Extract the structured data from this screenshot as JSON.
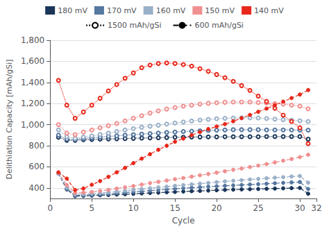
{
  "chart_data": {
    "type": "line",
    "xlabel": "Cycle",
    "ylabel": "Delithiation Capacity [mAh/gSi]",
    "x": [
      1,
      2,
      3,
      4,
      5,
      6,
      7,
      8,
      9,
      10,
      11,
      12,
      13,
      14,
      15,
      16,
      17,
      18,
      19,
      20,
      21,
      22,
      23,
      24,
      25,
      26,
      27,
      28,
      29,
      30,
      31
    ],
    "xlim": [
      0,
      32
    ],
    "xticks": [
      0,
      5,
      10,
      15,
      20,
      25,
      30
    ],
    "ylim": [
      300,
      1800
    ],
    "yticks": [
      400,
      600,
      800,
      1000,
      1200,
      1400,
      1600,
      1800
    ],
    "grid": "y",
    "legend": "top",
    "series": [
      {
        "name": "180 mV",
        "group": "1500 mAh/gSi",
        "color": "#1a3558",
        "marker": "open circle",
        "line_style": "dotted",
        "values": [
          880,
          852,
          852,
          857,
          860,
          862,
          864,
          866,
          868,
          870,
          872,
          874,
          876,
          878,
          880,
          881,
          882,
          883,
          884,
          884,
          885,
          885,
          886,
          886,
          886,
          887,
          887,
          887,
          887,
          887,
          862
        ]
      },
      {
        "name": "180 mV",
        "group": "600 mAh/gSi",
        "color": "#1a3558",
        "marker": "filled circle",
        "line_style": "dashed",
        "values": [
          536,
          386,
          322,
          324,
          327,
          330,
          333,
          337,
          340,
          344,
          348,
          352,
          355,
          359,
          362,
          366,
          369,
          372,
          375,
          378,
          381,
          384,
          386,
          388,
          390,
          392,
          394,
          396,
          398,
          400,
          345
        ]
      },
      {
        "name": "170 mV",
        "group": "1500 mAh/gSi",
        "color": "#5577a0",
        "marker": "open circle",
        "line_style": "dotted",
        "values": [
          900,
          862,
          860,
          868,
          875,
          882,
          888,
          893,
          900,
          905,
          910,
          915,
          920,
          926,
          930,
          935,
          938,
          942,
          945,
          948,
          950,
          952,
          952,
          952,
          952,
          950,
          950,
          950,
          950,
          948,
          948
        ]
      },
      {
        "name": "170 mV",
        "group": "600 mAh/gSi",
        "color": "#5577a0",
        "marker": "filled circle",
        "line_style": "dashed",
        "values": [
          537,
          392,
          328,
          330,
          334,
          338,
          344,
          350,
          356,
          362,
          368,
          374,
          380,
          386,
          392,
          397,
          402,
          407,
          412,
          416,
          420,
          424,
          428,
          432,
          436,
          440,
          444,
          448,
          452,
          456,
          390
        ]
      },
      {
        "name": "160 mV",
        "group": "1500 mAh/gSi",
        "color": "#9ab0c8",
        "marker": "open circle",
        "line_style": "dotted",
        "values": [
          950,
          885,
          870,
          882,
          893,
          906,
          920,
          935,
          950,
          963,
          975,
          985,
          995,
          1005,
          1015,
          1025,
          1035,
          1043,
          1050,
          1056,
          1060,
          1063,
          1065,
          1065,
          1063,
          1058,
          1052,
          1047,
          1042,
          1037,
          1030
        ]
      },
      {
        "name": "160 mV",
        "group": "600 mAh/gSi",
        "color": "#9ab0c8",
        "marker": "filled circle",
        "line_style": "dashed",
        "values": [
          538,
          402,
          338,
          340,
          346,
          352,
          358,
          366,
          374,
          382,
          390,
          397,
          405,
          412,
          420,
          427,
          434,
          441,
          448,
          455,
          462,
          468,
          474,
          480,
          485,
          491,
          497,
          502,
          508,
          513,
          450
        ]
      },
      {
        "name": "150 mV",
        "group": "1500 mAh/gSi",
        "color": "#f09090",
        "marker": "open circle",
        "line_style": "dotted",
        "values": [
          1000,
          920,
          905,
          930,
          950,
          970,
          990,
          1010,
          1035,
          1060,
          1085,
          1110,
          1130,
          1148,
          1162,
          1175,
          1185,
          1195,
          1202,
          1208,
          1212,
          1215,
          1215,
          1215,
          1210,
          1205,
          1200,
          1195,
          1185,
          1175,
          1150
        ]
      },
      {
        "name": "150 mV",
        "group": "600 mAh/gSi",
        "color": "#f09090",
        "marker": "filled circle",
        "line_style": "dashed",
        "values": [
          543,
          428,
          352,
          356,
          362,
          372,
          382,
          394,
          406,
          418,
          432,
          446,
          458,
          470,
          483,
          494,
          507,
          520,
          532,
          545,
          558,
          572,
          584,
          598,
          612,
          626,
          642,
          658,
          674,
          692,
          715
        ]
      },
      {
        "name": "140 mV",
        "group": "1500 mAh/gSi",
        "color": "#e8281a",
        "marker": "open circle",
        "line_style": "dotted",
        "values": [
          1420,
          1185,
          1060,
          1120,
          1185,
          1250,
          1320,
          1380,
          1440,
          1490,
          1540,
          1565,
          1580,
          1585,
          1580,
          1570,
          1555,
          1530,
          1505,
          1475,
          1445,
          1410,
          1370,
          1325,
          1270,
          1220,
          1155,
          1090,
          1030,
          970,
          820
        ]
      },
      {
        "name": "140 mV",
        "group": "600 mAh/gSi",
        "color": "#e8281a",
        "marker": "filled circle",
        "line_style": "dashed",
        "values": [
          548,
          488,
          380,
          395,
          430,
          465,
          505,
          548,
          590,
          635,
          678,
          720,
          762,
          800,
          838,
          868,
          900,
          930,
          958,
          982,
          1005,
          1032,
          1062,
          1092,
          1122,
          1152,
          1185,
          1218,
          1252,
          1285,
          1328
        ]
      }
    ]
  }
}
